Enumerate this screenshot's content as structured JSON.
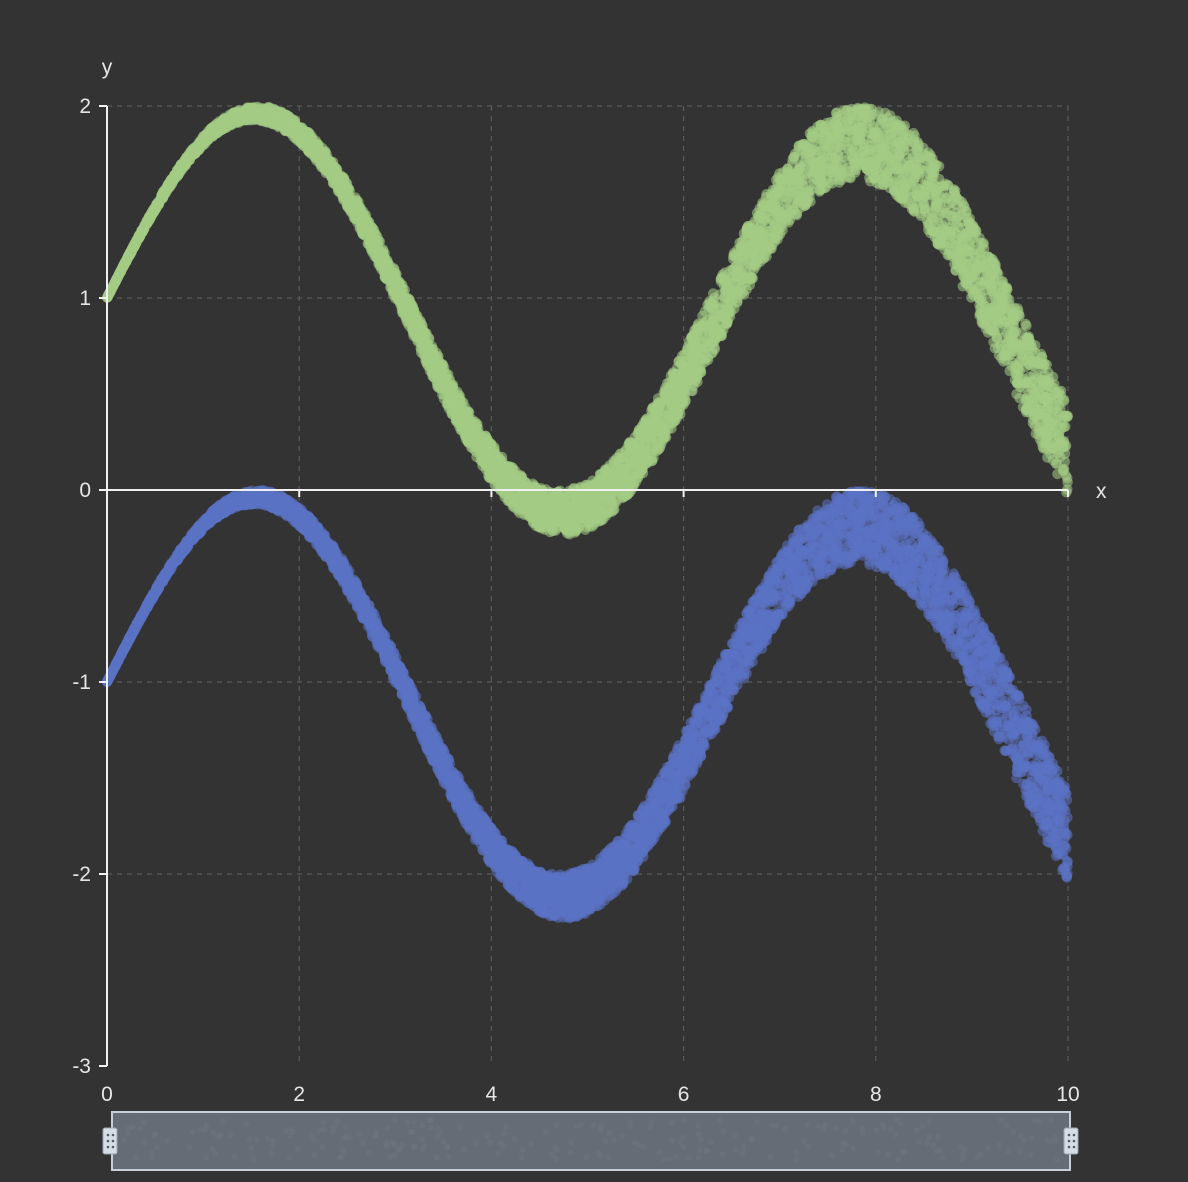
{
  "chart_data": {
    "type": "scatter",
    "title": "",
    "xlabel": "x",
    "ylabel": "y",
    "xlim": [
      0,
      10
    ],
    "ylim": [
      -3,
      2
    ],
    "x_ticks": [
      "0",
      "2",
      "4",
      "6",
      "8",
      "10"
    ],
    "y_ticks": [
      "2",
      "1",
      "0",
      "-1",
      "-2",
      "-3"
    ],
    "grid": true,
    "legend": "none",
    "series": [
      {
        "color": "#a4cc85",
        "center_formula": "y = 1 + sin(x)",
        "band_halfwidth_at_x0": 0.0,
        "band_halfwidth_at_x10": 0.5,
        "x": [
          0,
          0.5,
          1,
          1.5,
          2,
          2.5,
          3,
          3.5,
          4,
          4.5,
          5,
          5.5,
          6,
          6.5,
          7,
          7.5,
          8,
          8.5,
          9,
          9.5,
          10
        ],
        "y": [
          1.0,
          1.48,
          1.84,
          2.0,
          1.91,
          1.6,
          1.14,
          0.65,
          0.24,
          0.02,
          0.04,
          0.29,
          0.72,
          1.22,
          1.66,
          1.94,
          1.99,
          1.8,
          1.41,
          0.92,
          0.46
        ]
      },
      {
        "color": "#5b72c4",
        "center_formula": "y = -1 + sin(x)",
        "band_halfwidth_at_x0": 0.0,
        "band_halfwidth_at_x10": 0.5,
        "x": [
          0,
          0.5,
          1,
          1.5,
          2,
          2.5,
          3,
          3.5,
          4,
          4.5,
          5,
          5.5,
          6,
          6.5,
          7,
          7.5,
          8,
          8.5,
          9,
          9.5,
          10
        ],
        "y": [
          -1.0,
          -0.52,
          -0.16,
          0.0,
          -0.09,
          -0.4,
          -0.86,
          -1.35,
          -1.76,
          -1.98,
          -1.96,
          -1.71,
          -1.28,
          -0.78,
          -0.34,
          -0.06,
          -0.01,
          -0.2,
          -0.59,
          -1.08,
          -1.54
        ]
      }
    ],
    "zoom_slider": {
      "start": 0,
      "end": 10
    }
  }
}
